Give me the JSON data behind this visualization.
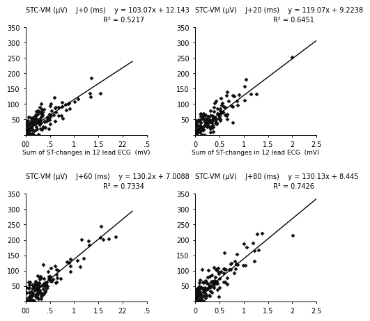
{
  "subplots": [
    {
      "ylabel": "STC-VM (μV)",
      "time_label": "J+0 (ms)",
      "eq": "y = 103.07x + 12.143",
      "r2": "R² = 0.5217",
      "slope": 103.07,
      "intercept": 12.143,
      "xlim": [
        0,
        2.2
      ],
      "ylim": [
        0,
        350
      ],
      "xticks": [
        0.0,
        0.5,
        1.0,
        1.5,
        2.0
      ],
      "xtick_labels": [
        "00",
        ".5",
        "1",
        "1.5",
        "22"
      ],
      "extra_xtick": 2.5,
      "extra_xtick_label": ".5",
      "yticks": [
        0,
        50,
        100,
        150,
        200,
        250,
        300,
        350
      ],
      "has_xlabel": true,
      "xlabel": "Sum of ST-changes in 12 lead ECG  (mV)",
      "seed": 10
    },
    {
      "ylabel": "STC-VM (μV)",
      "time_label": "J+20 (ms)",
      "eq": "y = 119.07x + 9.2238",
      "r2": "R² = 0.6451",
      "slope": 119.07,
      "intercept": 9.2238,
      "xlim": [
        0,
        2.5
      ],
      "ylim": [
        0,
        350
      ],
      "xticks": [
        0,
        0.5,
        1.0,
        1.5,
        2.0,
        2.5
      ],
      "xtick_labels": [
        "0",
        "0.5",
        "1",
        "1.5",
        "2",
        "2.5"
      ],
      "extra_xtick": null,
      "extra_xtick_label": null,
      "yticks": [
        0,
        50,
        100,
        150,
        200,
        250,
        300,
        350
      ],
      "has_xlabel": true,
      "xlabel": "Sum of ST-changes in 12 lead ECG  (mV)",
      "seed": 20
    },
    {
      "ylabel": "STC-VM (μV)",
      "time_label": "J+60 (ms)",
      "eq": "y = 130.2x + 7.0088",
      "r2": "R² = 0.7334",
      "slope": 130.2,
      "intercept": 7.0088,
      "xlim": [
        0,
        2.2
      ],
      "ylim": [
        0,
        350
      ],
      "xticks": [
        0.0,
        0.5,
        1.0,
        1.5,
        2.0
      ],
      "xtick_labels": [
        "00",
        ".5",
        "1",
        "1.5",
        "22"
      ],
      "extra_xtick": 2.5,
      "extra_xtick_label": ".5",
      "yticks": [
        0,
        50,
        100,
        150,
        200,
        250,
        300,
        350
      ],
      "has_xlabel": false,
      "xlabel": "",
      "seed": 60
    },
    {
      "ylabel": "STC-VM (μV)",
      "time_label": "J+80 (ms)",
      "eq": "y = 130.13x + 8.445",
      "r2": "R² = 0.7426",
      "slope": 130.13,
      "intercept": 8.445,
      "xlim": [
        0,
        2.5
      ],
      "ylim": [
        0,
        350
      ],
      "xticks": [
        0,
        0.5,
        1.0,
        1.5,
        2.0,
        2.5
      ],
      "xtick_labels": [
        "0",
        "0.5",
        "1",
        "1.5",
        "2",
        "2.5"
      ],
      "extra_xtick": null,
      "extra_xtick_label": null,
      "yticks": [
        0,
        50,
        100,
        150,
        200,
        250,
        300,
        350
      ],
      "has_xlabel": false,
      "xlabel": "",
      "seed": 80
    }
  ],
  "background_color": "#ffffff",
  "marker_color": "#111111",
  "line_color": "#000000",
  "marker_size": 3.0,
  "font_size": 7,
  "title_font_size": 7
}
